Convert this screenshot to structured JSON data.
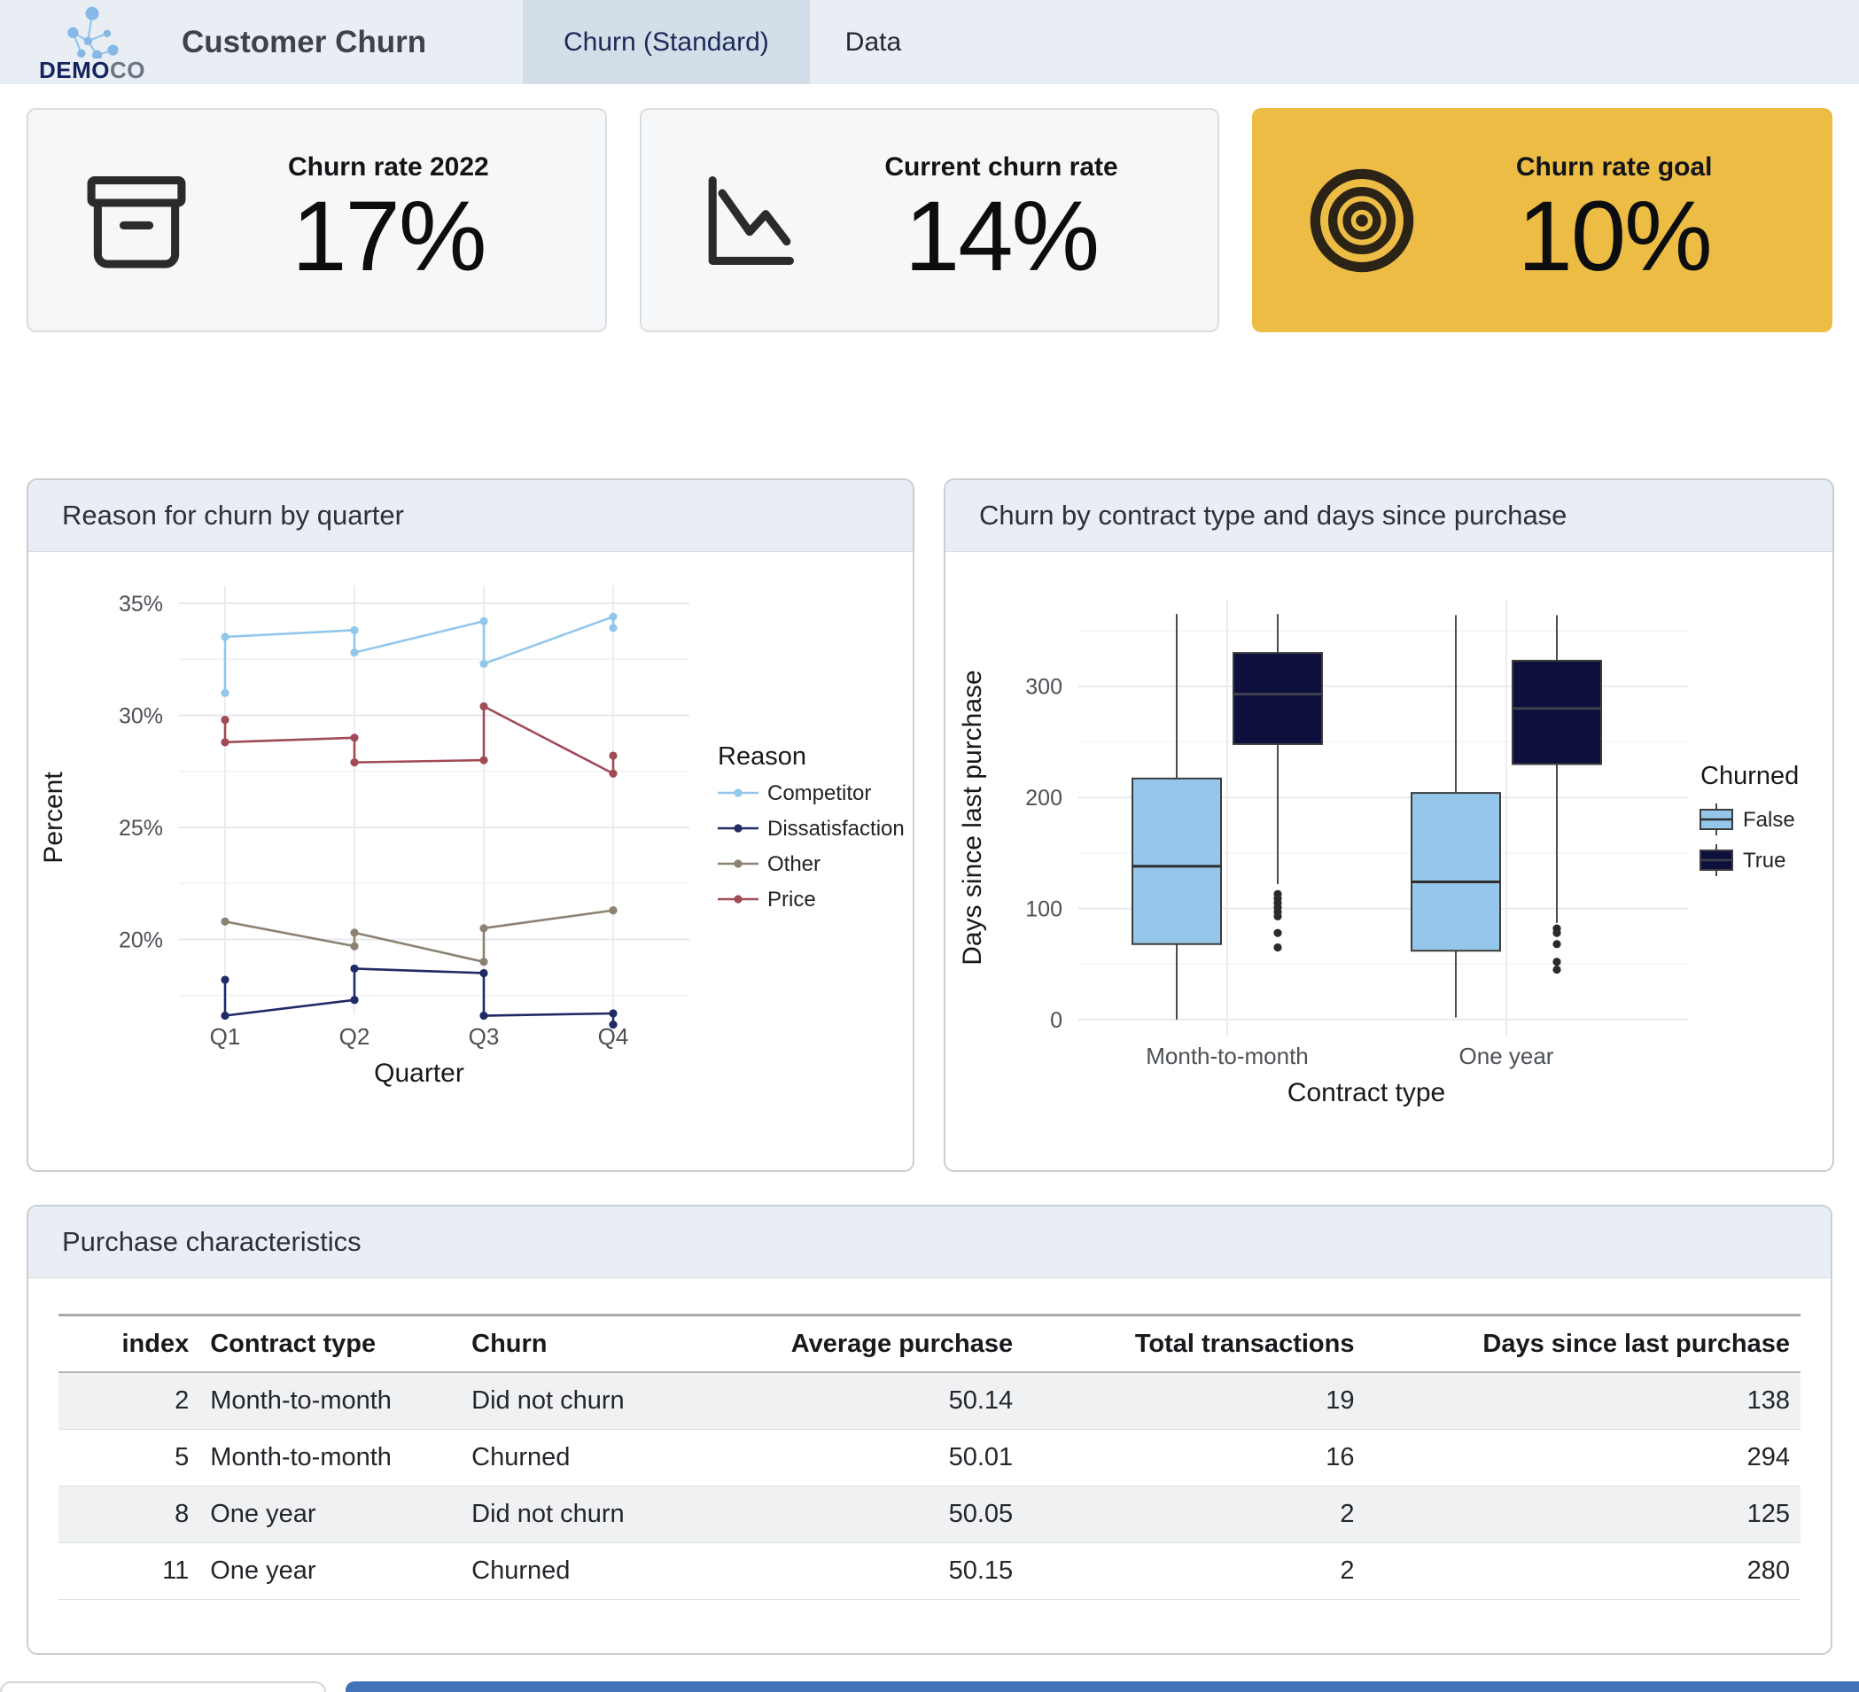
{
  "header": {
    "brand_bold": "DEMO",
    "brand_light": "CO",
    "title": "Customer Churn",
    "tabs": [
      {
        "label": "Churn (Standard)",
        "active": true
      },
      {
        "label": "Data",
        "active": false
      }
    ]
  },
  "kpi_cards": [
    {
      "title": "Churn rate 2022",
      "value": "17%",
      "icon": "archive-box-icon",
      "background": "#f5f7f9"
    },
    {
      "title": "Current churn rate",
      "value": "14%",
      "icon": "trend-down-chart-icon",
      "background": "#f5f7f9"
    },
    {
      "title": "Churn rate goal",
      "value": "10%",
      "icon": "target-icon",
      "background": "#ecbc45"
    }
  ],
  "table": {
    "title": "Purchase characteristics",
    "columns": [
      "index",
      "Contract type",
      "Churn",
      "Average purchase",
      "Total transactions",
      "Days since last purchase"
    ],
    "column_align": [
      "right",
      "left",
      "left",
      "right",
      "right",
      "right"
    ],
    "rows": [
      [
        "2",
        "Month-to-month",
        "Did not churn",
        "50.14",
        "19",
        "138"
      ],
      [
        "5",
        "Month-to-month",
        "Churned",
        "50.01",
        "16",
        "294"
      ],
      [
        "8",
        "One year",
        "Did not churn",
        "50.05",
        "2",
        "125"
      ],
      [
        "11",
        "One year",
        "Churned",
        "50.15",
        "2",
        "280"
      ]
    ]
  },
  "chart_data": [
    {
      "type": "line",
      "title": "Reason for churn by quarter",
      "xlabel": "Quarter",
      "ylabel": "Percent",
      "categories": [
        "Q1",
        "Q2",
        "Q3",
        "Q4"
      ],
      "legend_title": "Reason",
      "legend_position": "right",
      "yticks_major": [
        35,
        30,
        25,
        20
      ],
      "yticks_minor": [
        32.5,
        27.5,
        22.5,
        17.5
      ],
      "ytick_suffix": "%",
      "ylim": [
        16,
        36
      ],
      "grid": true,
      "series": [
        {
          "name": "Competitor",
          "color": "#92c7ec",
          "points": [
            [
              "Q1",
              31.0
            ],
            [
              "Q1",
              33.5
            ],
            [
              "Q2",
              33.8
            ],
            [
              "Q2",
              32.8
            ],
            [
              "Q3",
              34.2
            ],
            [
              "Q3",
              32.3
            ],
            [
              "Q4",
              34.4
            ],
            [
              "Q4",
              33.9
            ]
          ]
        },
        {
          "name": "Dissatisfaction",
          "color": "#1f2a66",
          "points": [
            [
              "Q1",
              18.2
            ],
            [
              "Q1",
              16.6
            ],
            [
              "Q2",
              17.3
            ],
            [
              "Q2",
              18.7
            ],
            [
              "Q3",
              18.5
            ],
            [
              "Q3",
              16.6
            ],
            [
              "Q4",
              16.7
            ],
            [
              "Q4",
              16.2
            ]
          ]
        },
        {
          "name": "Other",
          "color": "#8b8271",
          "points": [
            [
              "Q1",
              20.8
            ],
            [
              "Q2",
              19.7
            ],
            [
              "Q2",
              20.3
            ],
            [
              "Q3",
              19.0
            ],
            [
              "Q3",
              20.5
            ],
            [
              "Q4",
              21.3
            ]
          ]
        },
        {
          "name": "Price",
          "color": "#a04b55",
          "points": [
            [
              "Q1",
              29.8
            ],
            [
              "Q1",
              28.8
            ],
            [
              "Q2",
              29.0
            ],
            [
              "Q2",
              27.9
            ],
            [
              "Q3",
              28.0
            ],
            [
              "Q3",
              30.4
            ],
            [
              "Q4",
              27.4
            ],
            [
              "Q4",
              28.2
            ]
          ]
        }
      ]
    },
    {
      "type": "boxplot",
      "title": "Churn by contract type and days since purchase",
      "xlabel": "Contract type",
      "ylabel": "Days since last purchase",
      "categories": [
        "Month-to-month",
        "One year"
      ],
      "legend_title": "Churned",
      "legend_position": "right",
      "yticks": [
        0,
        100,
        200,
        300
      ],
      "yticks_minor": [
        50,
        150,
        250,
        350
      ],
      "ylim": [
        -25,
        400
      ],
      "groups": [
        {
          "name": "False",
          "color": "#94c7ea",
          "boxes": [
            {
              "category": "Month-to-month",
              "whisker_low": 0,
              "q1": 68,
              "median": 138,
              "q3": 217,
              "whisker_high": 365,
              "outliers": []
            },
            {
              "category": "One year",
              "whisker_low": 2,
              "q1": 62,
              "median": 124,
              "q3": 204,
              "whisker_high": 364,
              "outliers": []
            }
          ]
        },
        {
          "name": "True",
          "color": "#0d0f3d",
          "boxes": [
            {
              "category": "Month-to-month",
              "whisker_low": 122,
              "q1": 248,
              "median": 293,
              "q3": 330,
              "whisker_high": 365,
              "outliers": [
                113,
                109,
                105,
                101,
                97,
                93,
                78,
                65
              ]
            },
            {
              "category": "One year",
              "whisker_low": 87,
              "q1": 230,
              "median": 280,
              "q3": 323,
              "whisker_high": 364,
              "outliers": [
                82,
                78,
                68,
                52,
                45
              ]
            }
          ]
        }
      ]
    }
  ],
  "colors": {
    "header_bg": "#e9eef4",
    "tab_active_bg": "#d3dee8",
    "tab_active_text": "#1c2a58",
    "card_bg": "#f5f7f9",
    "accent_gold": "#ecbc45",
    "panel_head_bg": "#e9eef4",
    "stripe": "#f0f1f2",
    "bottom_bar_blue": "#4472b8",
    "box_false": "#94c7ea",
    "box_true": "#0d0f3d"
  }
}
